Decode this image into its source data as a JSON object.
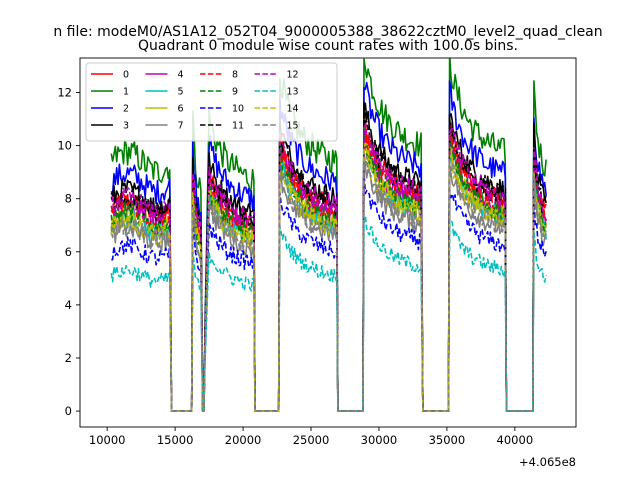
{
  "chart_data": {
    "type": "line",
    "suptitle": "n file: modeM0/AS1A12_052T04_9000005388_38622cztM0_level2_quad_clean",
    "title": "Quadrant 0 module wise count rates with 100.0s bins.",
    "xlabel": "",
    "ylabel": "",
    "offset_text": "+4.065e8",
    "xlim": [
      8000,
      44500
    ],
    "ylim": [
      -0.6,
      13.3
    ],
    "xticks": [
      10000,
      15000,
      20000,
      25000,
      30000,
      35000,
      40000
    ],
    "xtick_labels": [
      "10000",
      "15000",
      "20000",
      "25000",
      "30000",
      "35000",
      "40000"
    ],
    "yticks": [
      0,
      2,
      4,
      6,
      8,
      10,
      12
    ],
    "ytick_labels": [
      "0",
      "2",
      "4",
      "6",
      "8",
      "10",
      "12"
    ],
    "grid": false,
    "legend_position": "top-left",
    "segments": [
      {
        "start": 10300,
        "end": 14650
      },
      {
        "start": 16300,
        "end": 16950
      },
      {
        "start": 17200,
        "end": 20800
      },
      {
        "start": 22700,
        "end": 26900
      },
      {
        "start": 28900,
        "end": 33150
      },
      {
        "start": 35200,
        "end": 39300
      },
      {
        "start": 41400,
        "end": 42300
      }
    ],
    "gaps_value": 0,
    "series": [
      {
        "name": "0",
        "color": "#ff0000",
        "dash": "solid",
        "level": 7.6
      },
      {
        "name": "1",
        "color": "#008000",
        "dash": "solid",
        "level": 9.4
      },
      {
        "name": "2",
        "color": "#0000ff",
        "dash": "solid",
        "level": 8.6
      },
      {
        "name": "3",
        "color": "#000000",
        "dash": "solid",
        "level": 8.0
      },
      {
        "name": "4",
        "color": "#bf00bf",
        "dash": "solid",
        "level": 7.3
      },
      {
        "name": "5",
        "color": "#00bfbf",
        "dash": "solid",
        "level": 7.0
      },
      {
        "name": "6",
        "color": "#bfbf00",
        "dash": "solid",
        "level": 7.1
      },
      {
        "name": "7",
        "color": "#808080",
        "dash": "solid",
        "level": 6.6
      },
      {
        "name": "8",
        "color": "#ff0000",
        "dash": "dashed",
        "level": 7.5
      },
      {
        "name": "9",
        "color": "#008000",
        "dash": "dashed",
        "level": 7.2
      },
      {
        "name": "10",
        "color": "#0000ff",
        "dash": "dashed",
        "level": 6.0
      },
      {
        "name": "11",
        "color": "#000000",
        "dash": "dashed",
        "level": 7.8
      },
      {
        "name": "12",
        "color": "#bf00bf",
        "dash": "dashed",
        "level": 7.7
      },
      {
        "name": "13",
        "color": "#00bfbf",
        "dash": "dashed",
        "level": 5.1
      },
      {
        "name": "14",
        "color": "#bfbf00",
        "dash": "dashed",
        "level": 6.9
      },
      {
        "name": "15",
        "color": "#808080",
        "dash": "dashed",
        "level": 6.7
      }
    ]
  }
}
